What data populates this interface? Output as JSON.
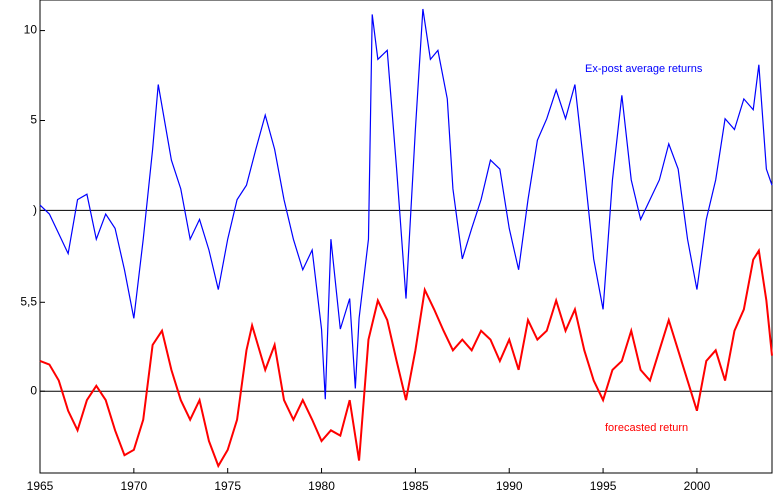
{
  "chart_data": {
    "type": "line",
    "xlim": [
      1965,
      2004
    ],
    "xticks": [
      1965,
      1970,
      1975,
      1980,
      1985,
      1990,
      1995,
      2000
    ],
    "ylim": [
      -14.6,
      11.7
    ],
    "yticks": [
      10,
      5,
      {
        "value": 0,
        "label": ")"
      }
    ],
    "y2lim": [
      -4.6,
      22
    ],
    "y2ticks": [
      {
        "value": 5,
        "label": "5,5"
      },
      0
    ],
    "series": [
      {
        "name": "Ex-post average returns",
        "color": "#0000ff",
        "x": [
          1965,
          1965.5,
          1966,
          1966.5,
          1967,
          1967.5,
          1968,
          1968.5,
          1969,
          1969.5,
          1970,
          1970.5,
          1971,
          1971.3,
          1971.8,
          1972,
          1972.5,
          1973,
          1973.5,
          1974,
          1974.5,
          1975,
          1975.5,
          1976,
          1976.5,
          1977,
          1977.5,
          1978,
          1978.5,
          1979,
          1979.5,
          1980,
          1980.2,
          1980.5,
          1981,
          1981.5,
          1981.8,
          1982,
          1982.5,
          1982.7,
          1983,
          1983.5,
          1984,
          1984.5,
          1985,
          1985.4,
          1985.8,
          1986.2,
          1986.7,
          1987,
          1987.5,
          1988,
          1988.5,
          1989,
          1989.5,
          1990,
          1990.5,
          1991,
          1991.5,
          1992,
          1992.5,
          1993,
          1993.5,
          1994,
          1994.5,
          1995,
          1995.5,
          1996,
          1996.5,
          1997,
          1997.5,
          1998,
          1998.5,
          1999,
          1999.5,
          2000,
          2000.5,
          2001,
          2001.5,
          2002,
          2002.5,
          2003,
          2003.3,
          2003.7,
          2004
        ],
        "values": [
          0.3,
          -0.2,
          -1.3,
          -2.4,
          0.6,
          0.9,
          -1.6,
          -0.2,
          -1,
          -3.3,
          -6,
          -1.6,
          3.4,
          7,
          4,
          2.8,
          1.2,
          -1.6,
          -0.5,
          -2.2,
          -4.4,
          -1.6,
          0.6,
          1.4,
          3.4,
          5.3,
          3.4,
          0.6,
          -1.6,
          -3.3,
          -2.2,
          -6.6,
          -10.5,
          -1.6,
          -6.6,
          -4.9,
          -9.9,
          -6,
          -1.6,
          10.9,
          8.4,
          8.9,
          2.3,
          -4.9,
          4.5,
          11.2,
          8.4,
          8.9,
          6.2,
          1.2,
          -2.7,
          -1,
          0.6,
          2.8,
          2.3,
          -1,
          -3.3,
          0.6,
          3.9,
          5.1,
          6.7,
          5.1,
          7,
          2.3,
          -2.7,
          -5.5,
          1.7,
          6.4,
          1.7,
          -0.5,
          0.6,
          1.7,
          3.7,
          2.3,
          -1.6,
          -4.4,
          -0.5,
          1.7,
          5.1,
          4.5,
          6.2,
          5.6,
          8.1,
          2.3,
          1.4
        ]
      },
      {
        "name": "forecasted return",
        "color": "#ff0000",
        "axis": "y2",
        "x": [
          1965,
          1965.5,
          1966,
          1966.5,
          1967,
          1967.5,
          1968,
          1968.5,
          1969,
          1969.5,
          1970,
          1970.5,
          1971,
          1971.5,
          1972,
          1972.5,
          1973,
          1973.5,
          1974,
          1974.5,
          1975,
          1975.5,
          1976,
          1976.3,
          1977,
          1977.5,
          1978,
          1978.5,
          1979,
          1979.5,
          1980,
          1980.5,
          1981,
          1981.5,
          1982,
          1982.5,
          1983,
          1983.5,
          1984,
          1984.5,
          1985,
          1985.5,
          1986,
          1986.5,
          1987,
          1987.5,
          1988,
          1988.5,
          1989,
          1989.5,
          1990,
          1990.5,
          1991,
          1991.5,
          1992,
          1992.5,
          1993,
          1993.5,
          1994,
          1994.5,
          1995,
          1995.5,
          1996,
          1996.5,
          1997,
          1997.5,
          1998,
          1998.5,
          1999,
          1999.5,
          2000,
          2000.5,
          2001,
          2001.5,
          2002,
          2002.5,
          2003,
          2003.3,
          2003.7,
          2004
        ],
        "values": [
          1.7,
          1.5,
          0.6,
          -1.1,
          -2.2,
          -0.5,
          0.3,
          -0.5,
          -2.2,
          -3.6,
          -3.3,
          -1.6,
          2.6,
          3.4,
          1.2,
          -0.5,
          -1.6,
          -0.5,
          -2.8,
          -4.2,
          -3.3,
          -1.6,
          2.3,
          3.7,
          1.2,
          2.6,
          -0.5,
          -1.6,
          -0.5,
          -1.6,
          -2.8,
          -2.2,
          -2.5,
          -0.5,
          -3.9,
          2.9,
          5.1,
          4,
          1.7,
          -0.5,
          2.3,
          5.7,
          4.6,
          3.4,
          2.3,
          2.9,
          2.3,
          3.4,
          2.9,
          1.7,
          2.9,
          1.2,
          4,
          2.9,
          3.4,
          5.1,
          3.4,
          4.6,
          2.3,
          0.6,
          -0.5,
          1.2,
          1.7,
          3.4,
          1.2,
          0.6,
          2.3,
          4,
          2.3,
          0.6,
          -1.1,
          1.7,
          2.3,
          0.6,
          3.4,
          4.6,
          7.4,
          7.9,
          5.1,
          2
        ]
      }
    ]
  }
}
